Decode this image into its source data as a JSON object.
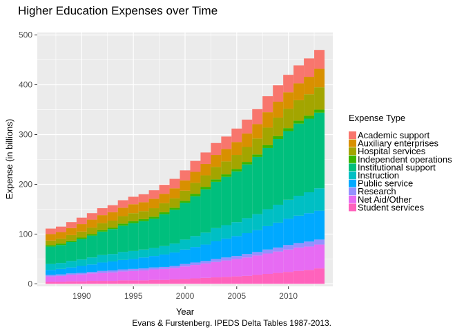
{
  "chart_data": {
    "type": "area",
    "title": "Higher Education Expenses over Time",
    "xlabel": "Year",
    "ylabel": "Expense (in billions)",
    "caption": "Evans & Furstenberg. IPEDS Delta Tables 1987-2013.",
    "legend_title": "Expense Type",
    "legend_position": "right",
    "stack_order": "first series on top",
    "grid": true,
    "xlim": [
      1985.7,
      2014.3
    ],
    "ylim": [
      -5,
      505
    ],
    "x_ticks": [
      1990,
      1995,
      2000,
      2005,
      2010
    ],
    "y_ticks": [
      0,
      100,
      200,
      300,
      400,
      500
    ],
    "x": [
      1987,
      1988,
      1989,
      1990,
      1991,
      1992,
      1993,
      1994,
      1995,
      1996,
      1997,
      1998,
      1999,
      2000,
      2001,
      2002,
      2003,
      2004,
      2005,
      2006,
      2007,
      2008,
      2009,
      2010,
      2011,
      2012,
      2013
    ],
    "series": [
      {
        "name": "Academic support",
        "color": "#F8766D",
        "values": [
          11,
          11,
          12,
          13,
          13,
          14,
          14,
          15,
          15,
          16,
          17,
          18,
          19,
          20,
          22,
          23,
          24,
          25,
          27,
          28,
          30,
          32,
          33,
          35,
          36,
          37,
          38
        ]
      },
      {
        "name": "Auxiliary enterprises",
        "color": "#D89000",
        "values": [
          13,
          13,
          14,
          15,
          16,
          16,
          17,
          17,
          18,
          18,
          19,
          19,
          20,
          21,
          22,
          23,
          24,
          25,
          26,
          27,
          29,
          31,
          32,
          33,
          34,
          35,
          37
        ]
      },
      {
        "name": "Hospital services",
        "color": "#A3A500",
        "values": [
          9,
          10,
          11,
          12,
          13,
          14,
          14,
          15,
          16,
          16,
          17,
          18,
          19,
          20,
          22,
          23,
          25,
          26,
          28,
          30,
          32,
          35,
          37,
          39,
          41,
          43,
          45
        ]
      },
      {
        "name": "Independent operations",
        "color": "#39B600",
        "values": [
          3,
          3,
          3,
          3,
          3,
          3,
          3,
          4,
          4,
          4,
          4,
          4,
          4,
          4,
          5,
          5,
          5,
          5,
          5,
          5,
          5,
          6,
          6,
          6,
          6,
          6,
          6
        ]
      },
      {
        "name": "Institutional support",
        "color": "#00BF7D",
        "values": [
          35,
          36,
          38,
          41,
          44,
          47,
          50,
          53,
          56,
          57,
          59,
          64,
          68,
          74,
          80,
          87,
          93,
          97,
          102,
          108,
          115,
          123,
          132,
          138,
          145,
          148,
          152
        ]
      },
      {
        "name": "Instruction",
        "color": "#00BFC4",
        "values": [
          12,
          12,
          13,
          13,
          14,
          15,
          15,
          16,
          16,
          16,
          16,
          17,
          18,
          20,
          22,
          24,
          26,
          27,
          28,
          30,
          32,
          34,
          36,
          38,
          40,
          42,
          45
        ]
      },
      {
        "name": "Public service",
        "color": "#00A9FF",
        "values": [
          10,
          11,
          12,
          14,
          15,
          17,
          18,
          19,
          20,
          22,
          23,
          25,
          27,
          29,
          31,
          33,
          36,
          38,
          40,
          42,
          44,
          47,
          50,
          53,
          55,
          57,
          58
        ]
      },
      {
        "name": "Research",
        "color": "#9590FF",
        "values": [
          3,
          3,
          3,
          3,
          3,
          4,
          4,
          4,
          4,
          4,
          4,
          4,
          4,
          5,
          5,
          5,
          6,
          6,
          6,
          7,
          7,
          8,
          8,
          9,
          9,
          10,
          10
        ]
      },
      {
        "name": "Net Aid/Other",
        "color": "#E76BF3",
        "values": [
          11,
          12,
          13,
          14,
          15,
          16,
          17,
          18,
          19,
          20,
          21,
          22,
          23,
          25,
          27,
          29,
          31,
          33,
          35,
          37,
          39,
          41,
          43,
          45,
          47,
          47,
          48
        ]
      },
      {
        "name": "Student services",
        "color": "#FF62BC",
        "values": [
          4,
          4,
          5,
          5,
          6,
          6,
          6,
          7,
          7,
          7,
          8,
          8,
          9,
          10,
          11,
          12,
          13,
          14,
          15,
          16,
          18,
          20,
          22,
          24,
          26,
          28,
          31
        ]
      }
    ]
  }
}
